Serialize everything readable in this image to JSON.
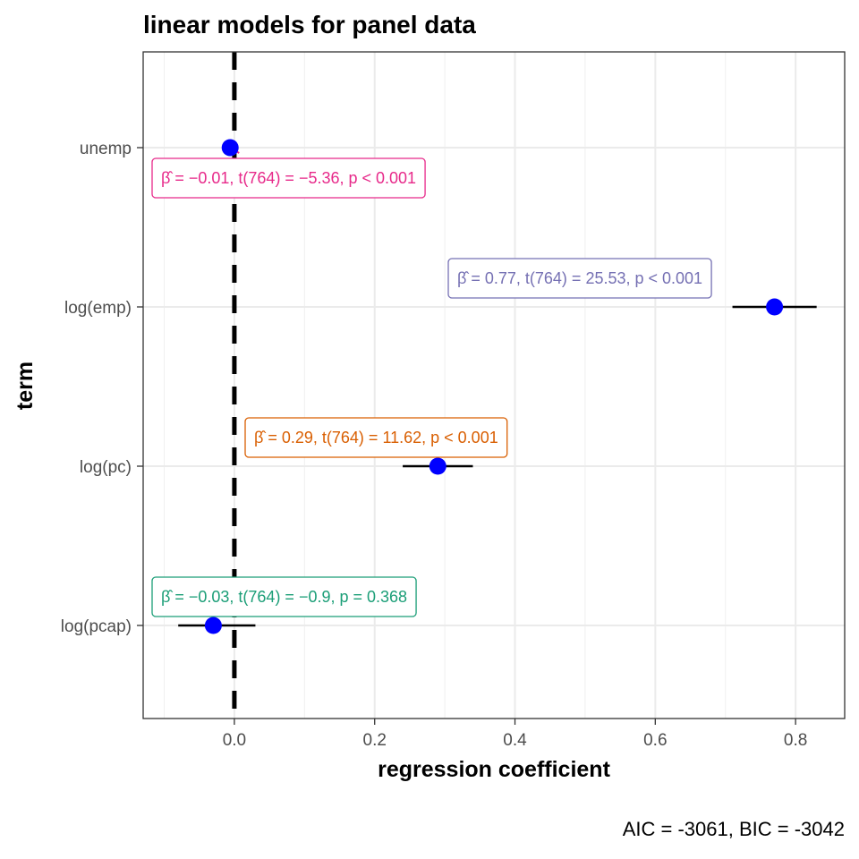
{
  "chart_data": {
    "type": "scatter",
    "title": "linear models for panel data",
    "xlabel": "regression coefficient",
    "ylabel": "term",
    "caption": "AIC = -3061, BIC = -3042",
    "xlim": [
      -0.13,
      0.87
    ],
    "x_ticks": [
      0.0,
      0.2,
      0.4,
      0.6,
      0.8
    ],
    "x_tick_labels": [
      "0.0",
      "0.2",
      "0.4",
      "0.6",
      "0.8"
    ],
    "grid": true,
    "reference_line": 0,
    "point_color": "#0000ff",
    "terms": [
      {
        "term": "unemp",
        "estimate": -0.006,
        "conf_low": -0.008,
        "conf_high": -0.004,
        "label_color": "#e7298a",
        "label": "β̂ = −0.01, t(764) = −5.36, p < 0.001"
      },
      {
        "term": "log(emp)",
        "estimate": 0.77,
        "conf_low": 0.71,
        "conf_high": 0.83,
        "label_color": "#7570b3",
        "label": "β̂ = 0.77, t(764) = 25.53, p < 0.001"
      },
      {
        "term": "log(pc)",
        "estimate": 0.29,
        "conf_low": 0.24,
        "conf_high": 0.34,
        "label_color": "#d95f02",
        "label": "β̂ = 0.29, t(764) = 11.62, p < 0.001"
      },
      {
        "term": "log(pcap)",
        "estimate": -0.03,
        "conf_low": -0.08,
        "conf_high": 0.03,
        "label_color": "#1b9e77",
        "label": "β̂ = −0.03, t(764) = −0.9, p = 0.368"
      }
    ]
  }
}
